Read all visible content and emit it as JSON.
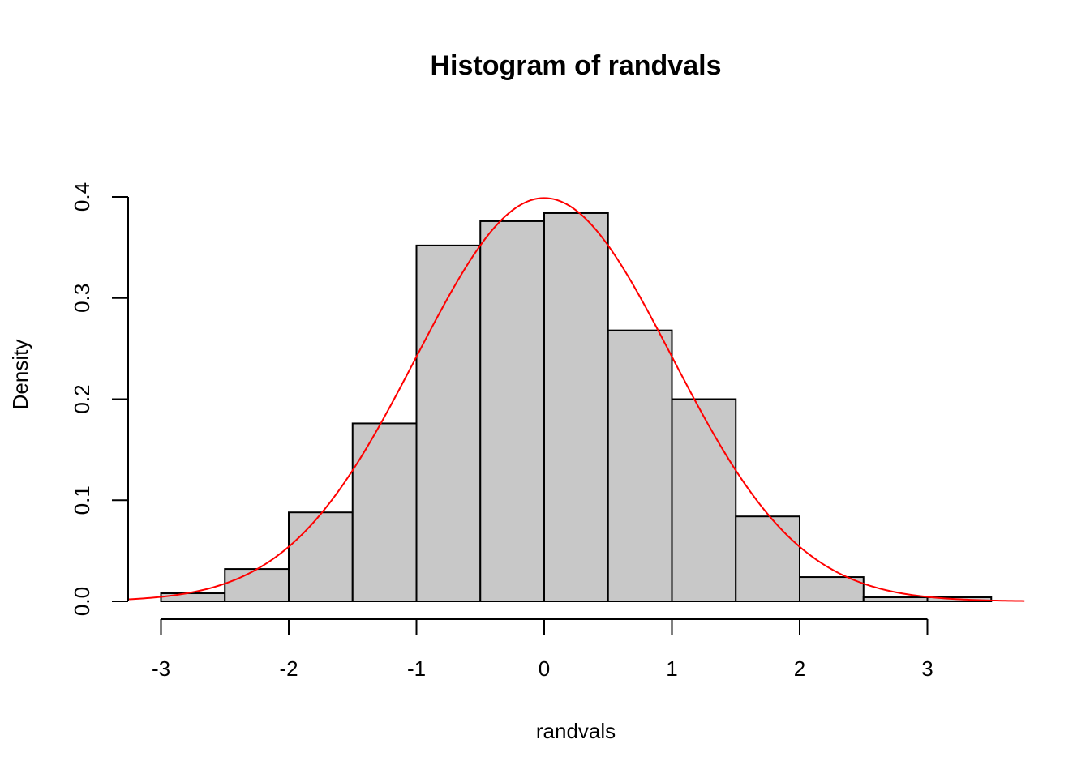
{
  "chart_data": {
    "type": "bar",
    "title": "Histogram of randvals",
    "xlabel": "randvals",
    "ylabel": "Density",
    "bins": [
      {
        "x0": -3.0,
        "x1": -2.5,
        "density": 0.008
      },
      {
        "x0": -2.5,
        "x1": -2.0,
        "density": 0.032
      },
      {
        "x0": -2.0,
        "x1": -1.5,
        "density": 0.088
      },
      {
        "x0": -1.5,
        "x1": -1.0,
        "density": 0.176
      },
      {
        "x0": -1.0,
        "x1": -0.5,
        "density": 0.352
      },
      {
        "x0": -0.5,
        "x1": 0.0,
        "density": 0.376
      },
      {
        "x0": 0.0,
        "x1": 0.5,
        "density": 0.384
      },
      {
        "x0": 0.5,
        "x1": 1.0,
        "density": 0.268
      },
      {
        "x0": 1.0,
        "x1": 1.5,
        "density": 0.2
      },
      {
        "x0": 1.5,
        "x1": 2.0,
        "density": 0.084
      },
      {
        "x0": 2.0,
        "x1": 2.5,
        "density": 0.024
      },
      {
        "x0": 2.5,
        "x1": 3.0,
        "density": 0.004
      },
      {
        "x0": 3.0,
        "x1": 3.5,
        "density": 0.004
      }
    ],
    "overlay": {
      "type": "line",
      "description": "normal density",
      "mean": 0,
      "sd": 1,
      "color": "#ff0000",
      "x_range": [
        -3.26,
        3.76
      ]
    },
    "xlim": [
      -3.26,
      3.76
    ],
    "ylim": [
      0,
      0.4
    ],
    "x_ticks": [
      -3,
      -2,
      -1,
      0,
      1,
      2,
      3
    ],
    "x_tick_labels": [
      "-3",
      "-2",
      "-1",
      "0",
      "1",
      "2",
      "3"
    ],
    "y_ticks": [
      0,
      0.1,
      0.2,
      0.3,
      0.4
    ],
    "y_tick_labels": [
      "0.0",
      "0.1",
      "0.2",
      "0.3",
      "0.4"
    ],
    "bar_color": "#c8c8c8",
    "grid": false
  }
}
